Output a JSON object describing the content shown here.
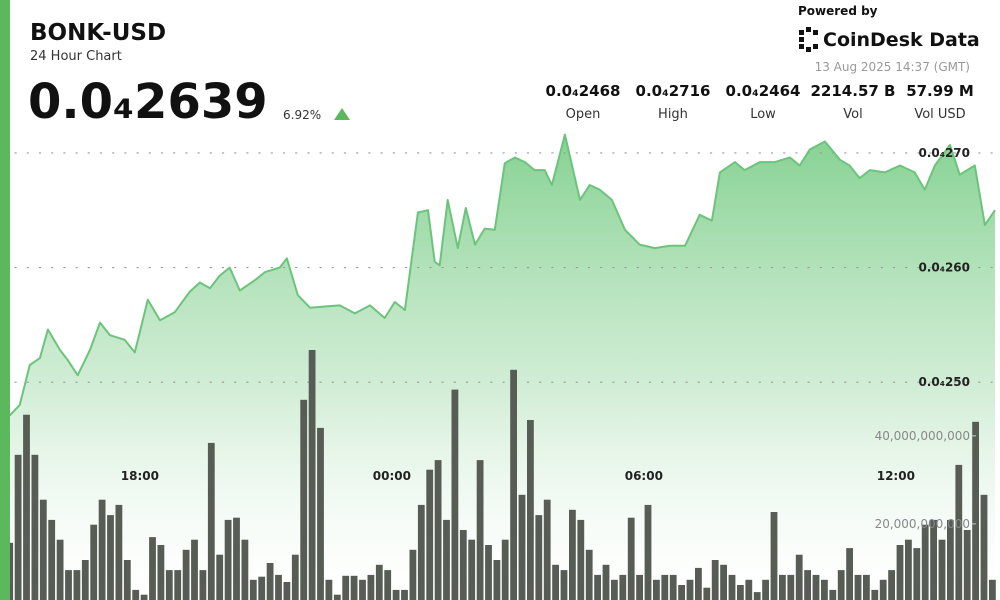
{
  "header": {
    "title": "BONK-USD",
    "subtitle": "24 Hour Chart",
    "price": "0.0₄2639",
    "change": "6.92%",
    "stats": [
      {
        "value": "0.0₄2468",
        "label": "Open"
      },
      {
        "value": "0.0₄2716",
        "label": "High"
      },
      {
        "value": "0.0₄2464",
        "label": "Low"
      },
      {
        "value": "2214.57 B",
        "label": "Vol"
      },
      {
        "value": "57.99 M",
        "label": "Vol USD"
      }
    ],
    "powered_by": "Powered by",
    "brand": "CoinDesk Data",
    "timestamp": "13 Aug 2025 14:37 (GMT)"
  },
  "chart_data": [
    {
      "type": "area",
      "color": "#6cc47c",
      "grid": true,
      "xlim": [
        14.67,
        38.48
      ],
      "ylim": [
        2.31e-05,
        2.72e-05
      ],
      "xticks": [
        {
          "value": 18,
          "label": "18:00"
        },
        {
          "value": 24,
          "label": "00:00"
        },
        {
          "value": 30,
          "label": "06:00"
        },
        {
          "value": 36,
          "label": "12:00"
        }
      ],
      "yticks": [
        {
          "value": 2.5e-05,
          "label": "0.0₄250"
        },
        {
          "value": 2.6e-05,
          "label": "0.0₄260"
        },
        {
          "value": 2.7e-05,
          "label": "0.0₄270"
        }
      ],
      "x": [
        14.9,
        15.14,
        15.38,
        15.62,
        15.81,
        16.1,
        16.29,
        16.52,
        16.81,
        17.05,
        17.29,
        17.64,
        17.88,
        18.19,
        18.48,
        18.83,
        19.19,
        19.43,
        19.67,
        19.9,
        20.14,
        20.38,
        20.74,
        20.98,
        21.33,
        21.5,
        21.76,
        22.05,
        22.4,
        22.76,
        23.12,
        23.48,
        23.83,
        24.07,
        24.31,
        24.62,
        24.86,
        25.02,
        25.14,
        25.33,
        25.57,
        25.76,
        25.98,
        26.21,
        26.45,
        26.69,
        26.93,
        27.17,
        27.4,
        27.64,
        27.81,
        28.12,
        28.48,
        28.71,
        28.95,
        29.24,
        29.55,
        29.9,
        30.26,
        30.62,
        30.98,
        31.33,
        31.62,
        31.81,
        32.17,
        32.4,
        32.76,
        33.12,
        33.48,
        33.71,
        33.95,
        34.31,
        34.67,
        34.9,
        35.14,
        35.38,
        35.74,
        36.1,
        36.45,
        36.69,
        36.93,
        37.29,
        37.52,
        37.88,
        38.12,
        38.36
      ],
      "values": [
        2.471e-05,
        2.48e-05,
        2.515e-05,
        2.521e-05,
        2.546e-05,
        2.528e-05,
        2.519e-05,
        2.506e-05,
        2.528e-05,
        2.552e-05,
        2.541e-05,
        2.537e-05,
        2.526e-05,
        2.572e-05,
        2.554e-05,
        2.561e-05,
        2.579e-05,
        2.587e-05,
        2.582e-05,
        2.593e-05,
        2.6e-05,
        2.58e-05,
        2.589e-05,
        2.596e-05,
        2.6e-05,
        2.608e-05,
        2.576e-05,
        2.565e-05,
        2.566e-05,
        2.567e-05,
        2.56e-05,
        2.567e-05,
        2.556e-05,
        2.57e-05,
        2.563e-05,
        2.648e-05,
        2.65e-05,
        2.605e-05,
        2.602e-05,
        2.659e-05,
        2.617e-05,
        2.652e-05,
        2.62e-05,
        2.634e-05,
        2.633e-05,
        2.691e-05,
        2.696e-05,
        2.692e-05,
        2.685e-05,
        2.685e-05,
        2.672e-05,
        2.716e-05,
        2.659e-05,
        2.672e-05,
        2.668e-05,
        2.659e-05,
        2.633e-05,
        2.62e-05,
        2.617e-05,
        2.619e-05,
        2.619e-05,
        2.646e-05,
        2.641e-05,
        2.683e-05,
        2.692e-05,
        2.685e-05,
        2.692e-05,
        2.692e-05,
        2.696e-05,
        2.689e-05,
        2.703e-05,
        2.71e-05,
        2.694e-05,
        2.689e-05,
        2.678e-05,
        2.685e-05,
        2.683e-05,
        2.689e-05,
        2.683e-05,
        2.668e-05,
        2.689e-05,
        2.707e-05,
        2.681e-05,
        2.689e-05,
        2.637e-05,
        2.65e-05
      ]
    },
    {
      "type": "bar",
      "color": "#575c55",
      "xlim": [
        14.67,
        38.48
      ],
      "ylim": [
        2700000000,
        109500000000
      ],
      "yticks": [
        {
          "value": 20000000000,
          "label": "20,000,000,000"
        },
        {
          "value": 40000000000,
          "label": "40,000,000,000"
        }
      ],
      "x": [
        14.9,
        15.1,
        15.3,
        15.5,
        15.7,
        15.9,
        16.1,
        16.3,
        16.5,
        16.7,
        16.9,
        17.1,
        17.3,
        17.5,
        17.7,
        17.9,
        18.1,
        18.3,
        18.5,
        18.7,
        18.9,
        19.1,
        19.3,
        19.5,
        19.7,
        19.9,
        20.1,
        20.3,
        20.5,
        20.7,
        20.9,
        21.1,
        21.3,
        21.5,
        21.7,
        21.9,
        22.1,
        22.3,
        22.5,
        22.7,
        22.9,
        23.1,
        23.3,
        23.5,
        23.7,
        23.9,
        24.1,
        24.3,
        24.5,
        24.7,
        24.9,
        25.1,
        25.3,
        25.5,
        25.7,
        25.9,
        26.1,
        26.3,
        26.5,
        26.7,
        26.9,
        27.1,
        27.3,
        27.5,
        27.7,
        27.9,
        28.1,
        28.3,
        28.5,
        28.7,
        28.9,
        29.1,
        29.3,
        29.5,
        29.7,
        29.9,
        30.1,
        30.3,
        30.5,
        30.7,
        30.9,
        31.1,
        31.3,
        31.5,
        31.7,
        31.9,
        32.1,
        32.3,
        32.5,
        32.7,
        32.9,
        33.1,
        33.3,
        33.5,
        33.7,
        33.9,
        34.1,
        34.3,
        34.5,
        34.7,
        34.9,
        35.1,
        35.3,
        35.5,
        35.7,
        35.9,
        36.1,
        36.3,
        36.5,
        36.7,
        36.9,
        37.1,
        37.3,
        37.5,
        37.7,
        37.9,
        38.1,
        38.3
      ],
      "values": [
        15700000000,
        35700000000,
        44800000000,
        35700000000,
        25500000000,
        20900000000,
        16400000000,
        9500000000,
        9500000000,
        11800000000,
        19800000000,
        25500000000,
        22000000000,
        24300000000,
        11800000000,
        5000000000,
        3900000000,
        17000000000,
        15200000000,
        9500000000,
        9500000000,
        14100000000,
        16400000000,
        9500000000,
        38400000000,
        13000000000,
        20900000000,
        21400000000,
        16400000000,
        7300000000,
        8000000000,
        11100000000,
        8400000000,
        6800000000,
        13000000000,
        48200000000,
        59500000000,
        41800000000,
        7300000000,
        3900000000,
        8200000000,
        8200000000,
        7300000000,
        8400000000,
        10700000000,
        9500000000,
        5000000000,
        5000000000,
        14100000000,
        24300000000,
        32300000000,
        34500000000,
        20900000000,
        50500000000,
        18600000000,
        16400000000,
        34500000000,
        15200000000,
        11800000000,
        16400000000,
        55000000000,
        26600000000,
        43600000000,
        22000000000,
        25500000000,
        10700000000,
        9500000000,
        23200000000,
        20900000000,
        14100000000,
        8400000000,
        10700000000,
        7300000000,
        8400000000,
        21400000000,
        8400000000,
        24300000000,
        7300000000,
        8400000000,
        8400000000,
        6100000000,
        7300000000,
        10000000000,
        5500000000,
        11800000000,
        10700000000,
        8400000000,
        6100000000,
        7300000000,
        4500000000,
        7300000000,
        22700000000,
        8400000000,
        8400000000,
        13000000000,
        9500000000,
        8400000000,
        7300000000,
        5000000000,
        9500000000,
        14500000000,
        8400000000,
        8400000000,
        5000000000,
        7300000000,
        9500000000,
        15200000000,
        16400000000,
        14500000000,
        19800000000,
        20900000000,
        16400000000,
        20900000000,
        33400000000,
        18600000000,
        43200000000,
        26600000000,
        7300000000
      ]
    }
  ]
}
